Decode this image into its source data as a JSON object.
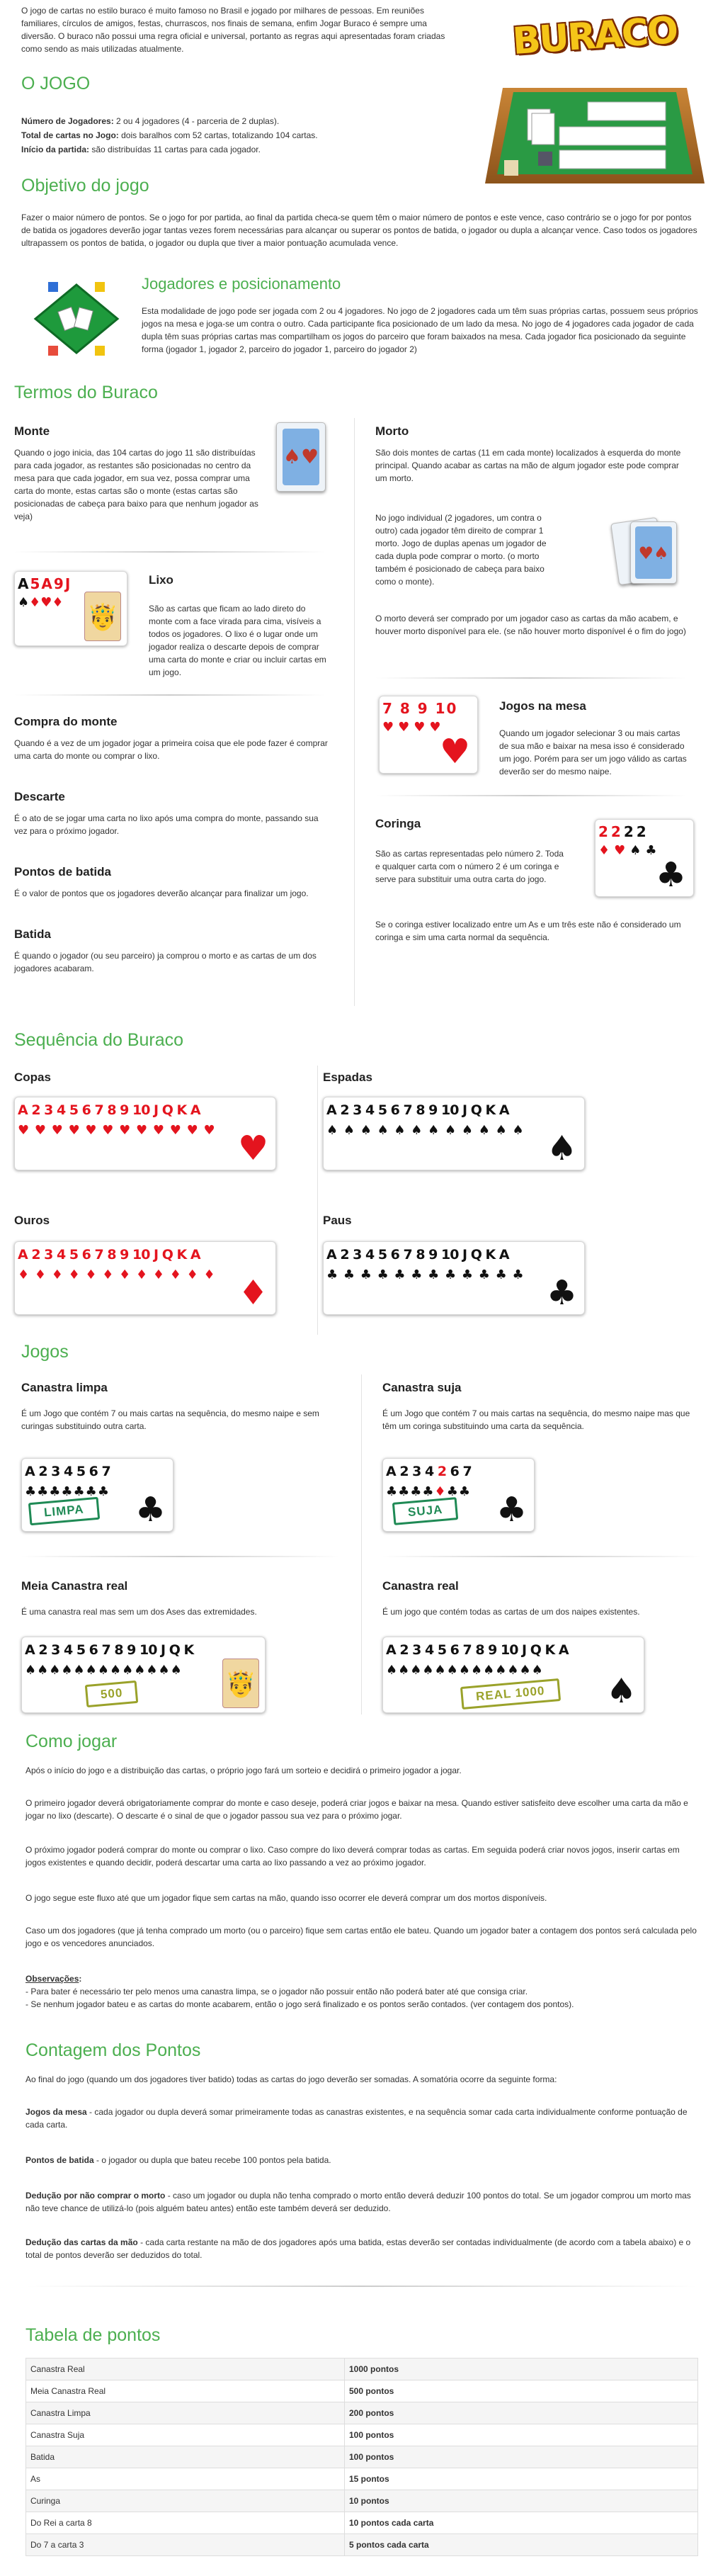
{
  "intro": {
    "text": "O jogo de cartas no estilo buraco é muito famoso no Brasil e jogado por milhares de pessoas. Em reuniões familiares, círculos de amigos, festas, churrascos, nos finais de semana, enfim Jogar Buraco é sempre uma diversão. O buraco não possui uma regra oficial e universal, portanto as regras aqui apresentadas foram criadas como sendo as mais utilizadas atualmente."
  },
  "logo": {
    "text": "BURACO"
  },
  "o_jogo": {
    "title": "O JOGO",
    "players_label": "Número de Jogadores:",
    "players_value": " 2 ou 4 jogadores (4 - parceria de 2 duplas).",
    "cards_label": "Total de cartas no Jogo:",
    "cards_value": " dois baralhos com 52 cartas, totalizando 104 cartas.",
    "start_label": "Início da partida:",
    "start_value": " são distribuídas 11 cartas para cada jogador."
  },
  "objetivo": {
    "title": "Objetivo do jogo",
    "text": "Fazer o maior número de pontos. Se o jogo for por partida, ao final da partida checa-se quem têm o maior número de pontos e este vence, caso contrário se o jogo for por pontos de batida os jogadores deverão jogar tantas vezes forem necessárias para alcançar ou superar os pontos de batida, o jogador ou dupla a alcançar vence. Caso todos os jogadores ultrapassem os pontos de batida, o jogador ou dupla que tiver a maior pontuação acumulada vence."
  },
  "jogadores": {
    "title": "Jogadores e posicionamento",
    "text": "Esta modalidade de jogo pode ser jogada com 2 ou 4 jogadores. No jogo de 2 jogadores cada um têm suas próprias cartas, possuem seus próprios jogos na mesa e joga-se um contra o outro. Cada participante fica posicionado de um lado da mesa. No jogo de 4 jogadores cada jogador de cada dupla têm suas próprias cartas mas compartilham os jogos do parceiro que foram baixados na mesa. Cada jogador fica posicionado da seguinte forma (jogador 1, jogador 2, parceiro do jogador 1, parceiro do jogador 2)"
  },
  "termos": {
    "title": "Termos do Buraco",
    "monte_title": "Monte",
    "monte_text": "Quando o jogo inicia, das 104 cartas do jogo 11 são distribuídas para cada jogador, as restantes são posicionadas no centro da mesa para que cada jogador, em sua vez, possa comprar uma carta do monte, estas cartas são o monte (estas cartas são posicionadas de cabeça para baixo para que nenhum jogador as veja)",
    "morto_title": "Morto",
    "morto_text1": "São dois montes de cartas (11 em cada monte) localizados à esquerda do monte principal. Quando acabar as cartas na mão de algum jogador este pode comprar um morto.",
    "morto_text2": "No jogo individual (2 jogadores, um contra o outro) cada jogador têm direito de comprar 1 morto. Jogo de duplas apenas um jogador de cada dupla pode comprar o morto. (o morto também é posicionado de cabeça para baixo como o monte).",
    "morto_text3": "O morto deverá ser comprado por um jogador caso as cartas da mão acabem, e houver morto disponível para ele. (se não houver morto disponível é o fim do jogo)",
    "lixo_title": "Lixo",
    "lixo_text": "São as cartas que ficam ao lado direto do monte com a face virada para cima, visíveis a todos os jogadores. O lixo é o lugar onde um jogador realiza o descarte depois de comprar uma carta do monte e criar ou incluir cartas em um jogo.",
    "jogos_title": "Jogos na mesa",
    "jogos_text": "Quando um jogador selecionar 3 ou mais cartas de sua mão e baixar na mesa isso é considerado um jogo. Porém para ser um jogo válido as cartas deverão ser do mesmo naipe.",
    "compra_title": "Compra do monte",
    "compra_text": "Quando é a vez de um jogador jogar a primeira coisa que ele pode fazer é comprar uma carta do monte ou comprar o lixo.",
    "coringa_title": "Coringa",
    "coringa_text": "São as cartas representadas pelo número 2. Toda e qualquer carta com o número 2 é um coringa e serve para substituir uma outra carta do jogo.",
    "coringa_text2": "Se o coringa estiver localizado entre um As e um três este não é considerado um coringa e sim uma carta normal da sequência.",
    "descarte_title": "Descarte",
    "descarte_text": "É o ato de se jogar uma carta no lixo após uma compra do monte, passando sua vez para o próximo jogador.",
    "pontos_title": "Pontos de batida",
    "pontos_text": "É o valor de pontos que os jogadores deverão alcançar para finalizar um jogo.",
    "batida_title": "Batida",
    "batida_text": "É quando o jogador (ou seu parceiro) ja comprou o morto e as cartas de um dos jogadores acabaram."
  },
  "sequencia": {
    "title": "Sequência do Buraco",
    "copas": "Copas",
    "espadas": "Espadas",
    "ouros": "Ouros",
    "paus": "Paus",
    "ranks": "A 2 3 4 5 6 7 8 9 10 J Q K A"
  },
  "jogos": {
    "title": "Jogos",
    "limpa_title": "Canastra limpa",
    "limpa_text": "É um Jogo que contém 7 ou mais cartas na sequência, do mesmo naipe e sem curingas substituindo outra carta.",
    "limpa_stamp": "LIMPA",
    "suja_title": "Canastra suja",
    "suja_text": "É um Jogo que contém 7 ou mais cartas na sequência, do mesmo naipe mas que têm um coringa substituindo uma carta da sequência.",
    "suja_stamp": "SUJA",
    "meia_title": "Meia Canastra real",
    "meia_text": "É uma canastra real mas sem um dos Ases das extremidades.",
    "meia_stamp": "500",
    "real_title": "Canastra real",
    "real_text": "É um jogo que contém todas as cartas de um dos naipes existentes.",
    "real_stamp": "REAL 1000"
  },
  "como": {
    "title": "Como jogar",
    "p1": "Após o início do jogo e a distribuição das cartas, o próprio jogo fará um sorteio e decidirá o primeiro jogador a jogar.",
    "p2": "O primeiro jogador deverá obrigatoriamente comprar do monte e caso deseje, poderá criar jogos e baixar na mesa. Quando estiver satisfeito deve escolher uma carta da mão e jogar no lixo (descarte). O descarte é o sinal de que o jogador passou sua vez para o próximo jogar.",
    "p3": "O próximo jogador poderá comprar do monte ou comprar o lixo. Caso compre do lixo deverá comprar todas as cartas. Em seguida poderá criar novos jogos, inserir cartas em jogos existentes e quando decidir, poderá descartar uma carta ao lixo passando a vez ao próximo jogador.",
    "p4": "O jogo segue este fluxo até que um jogador fique sem cartas na mão, quando isso ocorrer ele deverá comprar um dos mortos disponíveis.",
    "p5": "Caso um dos jogadores (que já tenha comprado um morto (ou o parceiro) fique sem cartas então ele bateu. Quando um jogador bater a contagem dos pontos será calculada pelo jogo e os vencedores anunciados.",
    "obs_label": "Observações",
    "obs1": "- Para bater é necessário ter pelo menos uma canastra limpa, se o jogador não possuir então não poderá bater até que consiga criar.",
    "obs2": "- Se nenhum jogador bateu e as cartas do monte acabarem, então o jogo será finalizado e os pontos serão contados. (ver contagem dos pontos)."
  },
  "contagem": {
    "title": "Contagem dos Pontos",
    "intro": "Ao final do jogo (quando um dos jogadores tiver batido) todas as cartas do jogo deverão ser somadas. A somatória ocorre da seguinte forma:",
    "mesa_label": "Jogos da mesa",
    "mesa_text": " - cada jogador ou dupla deverá somar primeiramente todas as canastras existentes, e na sequência somar cada carta individualmente conforme pontuação de cada carta.",
    "batida_label": "Pontos de batida",
    "batida_text": " - o jogador ou dupla que bateu recebe 100 pontos pela batida.",
    "morto_label": "Dedução por não comprar o morto",
    "morto_text": " - caso um jogador ou dupla não tenha comprado o morto então deverá deduzir 100 pontos do total. Se um jogador comprou um morto mas não teve chance de utilizá-lo (pois alguém bateu antes) então este também deverá ser deduzido.",
    "mao_label": "Dedução das cartas da mão",
    "mao_text": " - cada carta restante na mão de dos jogadores após uma batida, estas deverão ser contadas individualmente (de acordo com a tabela abaixo) e o total de pontos deverão ser deduzidos do total."
  },
  "tabela": {
    "title": "Tabela de pontos",
    "rows": [
      {
        "name": "Canastra Real",
        "value": "1000 pontos"
      },
      {
        "name": "Meia Canastra Real",
        "value": "500 pontos"
      },
      {
        "name": "Canastra Limpa",
        "value": "200 pontos"
      },
      {
        "name": "Canastra Suja",
        "value": "100 pontos"
      },
      {
        "name": "Batida",
        "value": "100 pontos"
      },
      {
        "name": "As",
        "value": "15 pontos"
      },
      {
        "name": "Curinga",
        "value": "10 pontos"
      },
      {
        "name": "Do Rei a carta 8",
        "value": "10 pontos cada carta"
      },
      {
        "name": "Do 7 a carta 3",
        "value": "5 pontos cada carta"
      }
    ]
  },
  "colors": {
    "green": "#4caf50",
    "red": "#e4141e",
    "table_green": "#1e9a3c",
    "wood": "#b8742a"
  }
}
